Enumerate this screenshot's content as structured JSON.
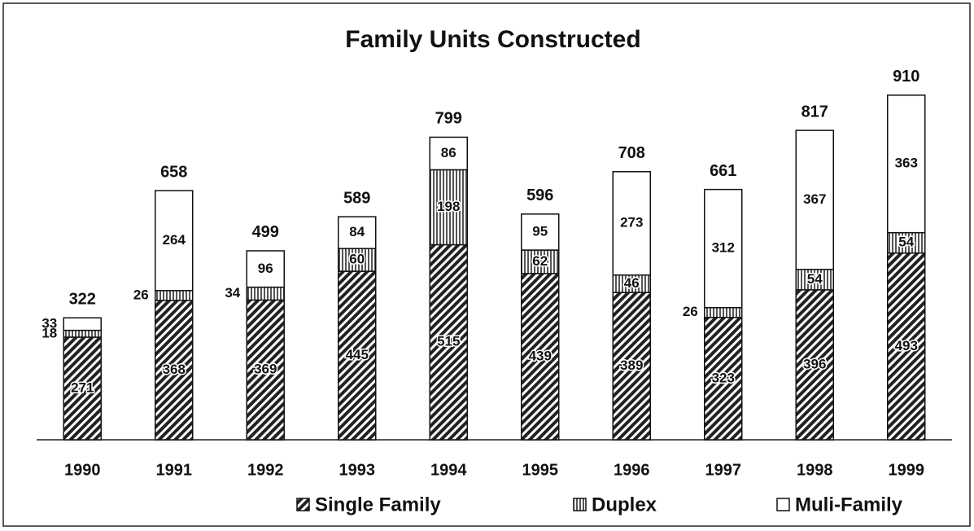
{
  "chart_data": {
    "type": "stacked-bar",
    "title": "Family Units Constructed",
    "categories": [
      "1990",
      "1991",
      "1992",
      "1993",
      "1994",
      "1995",
      "1996",
      "1997",
      "1998",
      "1999"
    ],
    "series": [
      {
        "name": "Single Family",
        "color": "#222222",
        "values": [
          271,
          368,
          369,
          445,
          515,
          439,
          389,
          323,
          396,
          493
        ]
      },
      {
        "name": "Duplex",
        "color": "#555555",
        "values": [
          18,
          26,
          34,
          60,
          198,
          62,
          46,
          26,
          54,
          54
        ]
      },
      {
        "name": "Muli-Family",
        "color": "#ffffff",
        "values": [
          33,
          264,
          96,
          84,
          86,
          95,
          273,
          312,
          367,
          363
        ]
      }
    ],
    "totals": [
      322,
      658,
      499,
      589,
      799,
      596,
      708,
      661,
      817,
      910
    ],
    "ylim": [
      0,
      1000
    ]
  }
}
